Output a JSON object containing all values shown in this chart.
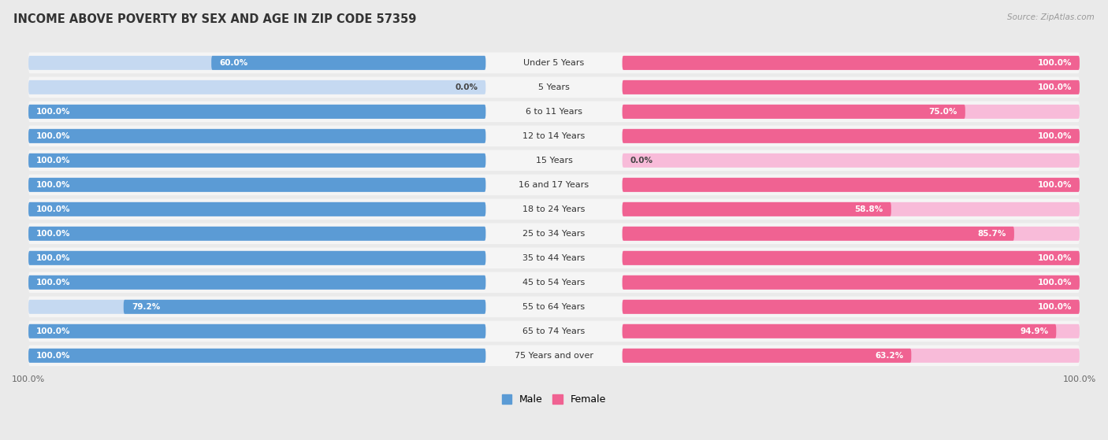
{
  "title": "INCOME ABOVE POVERTY BY SEX AND AGE IN ZIP CODE 57359",
  "source": "Source: ZipAtlas.com",
  "categories": [
    "Under 5 Years",
    "5 Years",
    "6 to 11 Years",
    "12 to 14 Years",
    "15 Years",
    "16 and 17 Years",
    "18 to 24 Years",
    "25 to 34 Years",
    "35 to 44 Years",
    "45 to 54 Years",
    "55 to 64 Years",
    "65 to 74 Years",
    "75 Years and over"
  ],
  "male_values": [
    60.0,
    0.0,
    100.0,
    100.0,
    100.0,
    100.0,
    100.0,
    100.0,
    100.0,
    100.0,
    79.2,
    100.0,
    100.0
  ],
  "female_values": [
    100.0,
    100.0,
    75.0,
    100.0,
    0.0,
    100.0,
    58.8,
    85.7,
    100.0,
    100.0,
    100.0,
    94.9,
    63.2
  ],
  "male_color": "#5b9bd5",
  "female_color": "#f06292",
  "male_color_light": "#c5d9f1",
  "female_color_light": "#f8bbd9",
  "background_color": "#eaeaea",
  "row_bg_color": "#f5f5f5",
  "title_fontsize": 10.5,
  "label_fontsize": 8.0,
  "value_fontsize": 7.5,
  "max_value": 100.0,
  "legend_male": "Male",
  "legend_female": "Female"
}
